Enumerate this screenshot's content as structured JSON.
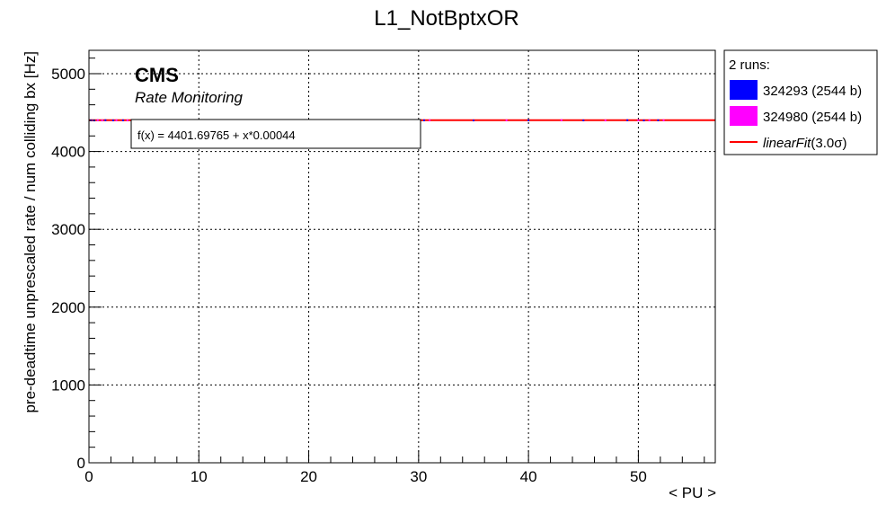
{
  "chart_data": {
    "type": "scatter",
    "title": "L1_NotBptxOR",
    "xlabel": "< PU >",
    "ylabel": "pre-deadtime unprescaled rate / num colliding bx [Hz]",
    "xlim": [
      0,
      57
    ],
    "ylim": [
      0,
      5300
    ],
    "x_ticks": [
      0,
      10,
      20,
      30,
      40,
      50
    ],
    "y_ticks": [
      0,
      1000,
      2000,
      3000,
      4000,
      5000
    ],
    "grid": true,
    "annotations": {
      "experiment": "CMS",
      "subtitle": "Rate Monitoring",
      "fit_box": "f(x) = 4401.69765 + x*0.00044"
    },
    "legend": {
      "placement": "outside-right",
      "header": "2 runs:",
      "entries": [
        {
          "label": "324293 (2544 b)",
          "color": "#0000ff",
          "kind": "box"
        },
        {
          "label": "324980 (2544 b)",
          "color": "#ff00ff",
          "kind": "box"
        },
        {
          "label_main": "linearFit",
          "label_suffix": "(3.0σ)",
          "color": "#ff0000",
          "kind": "line"
        }
      ]
    },
    "series": [
      {
        "name": "324293 (2544 b)",
        "color": "#0000ff",
        "points": [
          [
            0.2,
            4401
          ],
          [
            0.5,
            4399
          ],
          [
            1.5,
            4402
          ],
          [
            2.2,
            4400
          ],
          [
            3.1,
            4401
          ],
          [
            4.0,
            4398
          ],
          [
            5.5,
            4402
          ],
          [
            8.0,
            4401
          ],
          [
            12.0,
            4399
          ],
          [
            18.0,
            4402
          ],
          [
            24.0,
            4400
          ],
          [
            30.5,
            4401
          ],
          [
            35.0,
            4399
          ],
          [
            40.0,
            4401
          ],
          [
            45.0,
            4400
          ],
          [
            49.0,
            4402
          ],
          [
            50.5,
            4399
          ],
          [
            51.8,
            4401
          ]
        ]
      },
      {
        "name": "324980 (2544 b)",
        "color": "#ff00ff",
        "points": [
          [
            0.3,
            4400
          ],
          [
            0.8,
            4402
          ],
          [
            1.2,
            4399
          ],
          [
            2.5,
            4401
          ],
          [
            3.5,
            4400
          ],
          [
            6.0,
            4398
          ],
          [
            10.0,
            4401
          ],
          [
            15.0,
            4400
          ],
          [
            21.0,
            4402
          ],
          [
            27.0,
            4399
          ],
          [
            31.0,
            4401
          ],
          [
            38.0,
            4400
          ],
          [
            43.0,
            4402
          ],
          [
            47.0,
            4399
          ],
          [
            50.0,
            4401
          ],
          [
            51.0,
            4400
          ],
          [
            52.3,
            4401
          ]
        ]
      }
    ],
    "fit": {
      "name": "linearFit",
      "intercept": 4401.69765,
      "slope": 0.00044,
      "color": "#ff0000"
    }
  }
}
